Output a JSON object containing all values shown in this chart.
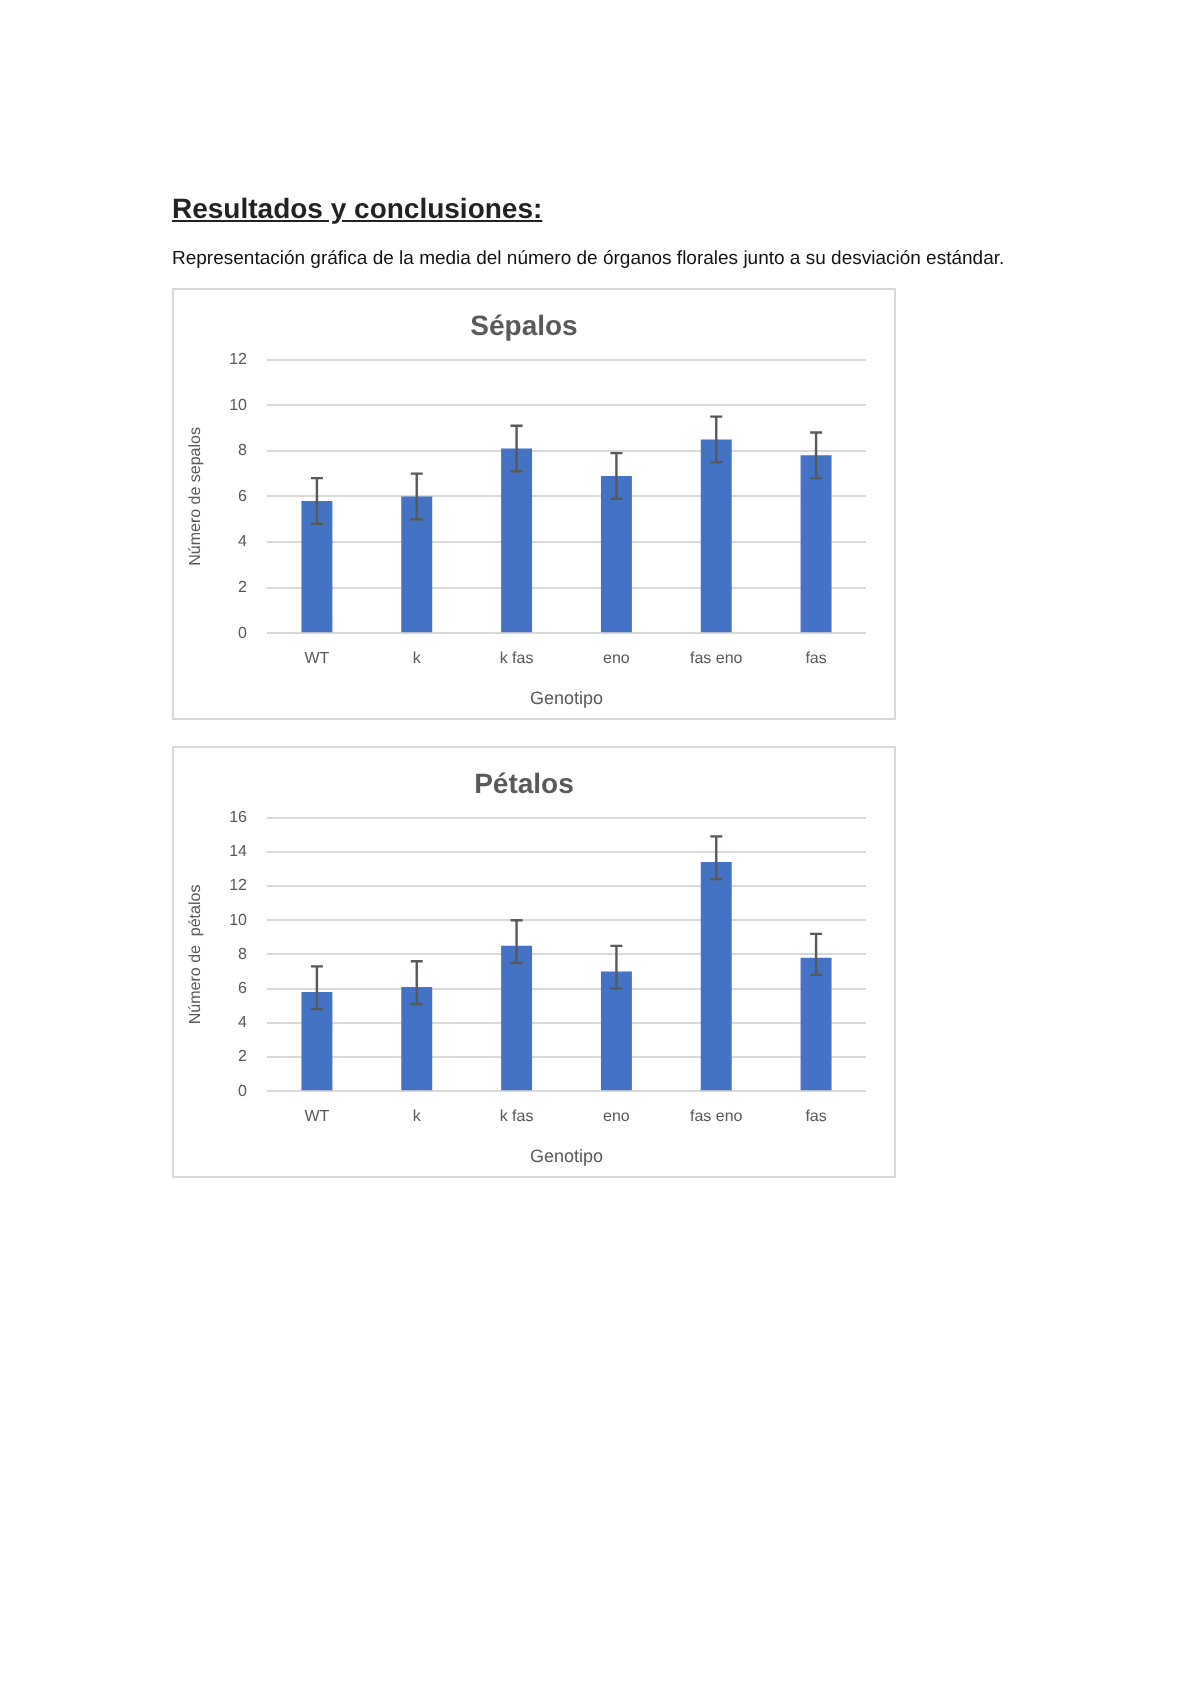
{
  "chart_data": [
    {
      "type": "bar",
      "title": "Sépalos",
      "xlabel": "Genotipo",
      "ylabel": "Número de sepalos",
      "annotations": [
        "Resultados y conclusiones:",
        "Representación gráfica de la media del número de órganos florales junto a su desviación estándar."
      ],
      "categories": [
        "WT",
        "k",
        "k fas",
        "eno",
        "fas eno",
        "fas"
      ],
      "values": [
        5.8,
        6.0,
        8.1,
        6.9,
        8.5,
        7.8
      ],
      "errors": [
        1.0,
        1.0,
        1.0,
        1.0,
        1.0,
        1.0
      ],
      "color": "#4472c4",
      "ylim": [
        0,
        12
      ],
      "yticks": [
        0,
        2,
        4,
        6,
        8,
        10,
        12
      ],
      "grid": "y"
    },
    {
      "type": "bar",
      "title": "Pétalos",
      "xlabel": "Genotipo",
      "ylabel": "Número de  pétalos",
      "categories": [
        "WT",
        "k",
        "k fas",
        "eno",
        "fas eno",
        "fas"
      ],
      "values": [
        5.8,
        6.1,
        8.5,
        7.0,
        13.4,
        7.8
      ],
      "errors": [
        [
          4.8,
          7.3
        ],
        [
          5.1,
          7.6
        ],
        [
          7.5,
          10.0
        ],
        [
          6.0,
          8.5
        ],
        [
          12.4,
          14.9
        ],
        [
          6.8,
          9.2
        ]
      ],
      "color": "#4472c4",
      "ylim": [
        0,
        16
      ],
      "yticks": [
        0,
        2,
        4,
        6,
        8,
        10,
        12,
        14,
        16
      ],
      "grid": "y"
    }
  ]
}
